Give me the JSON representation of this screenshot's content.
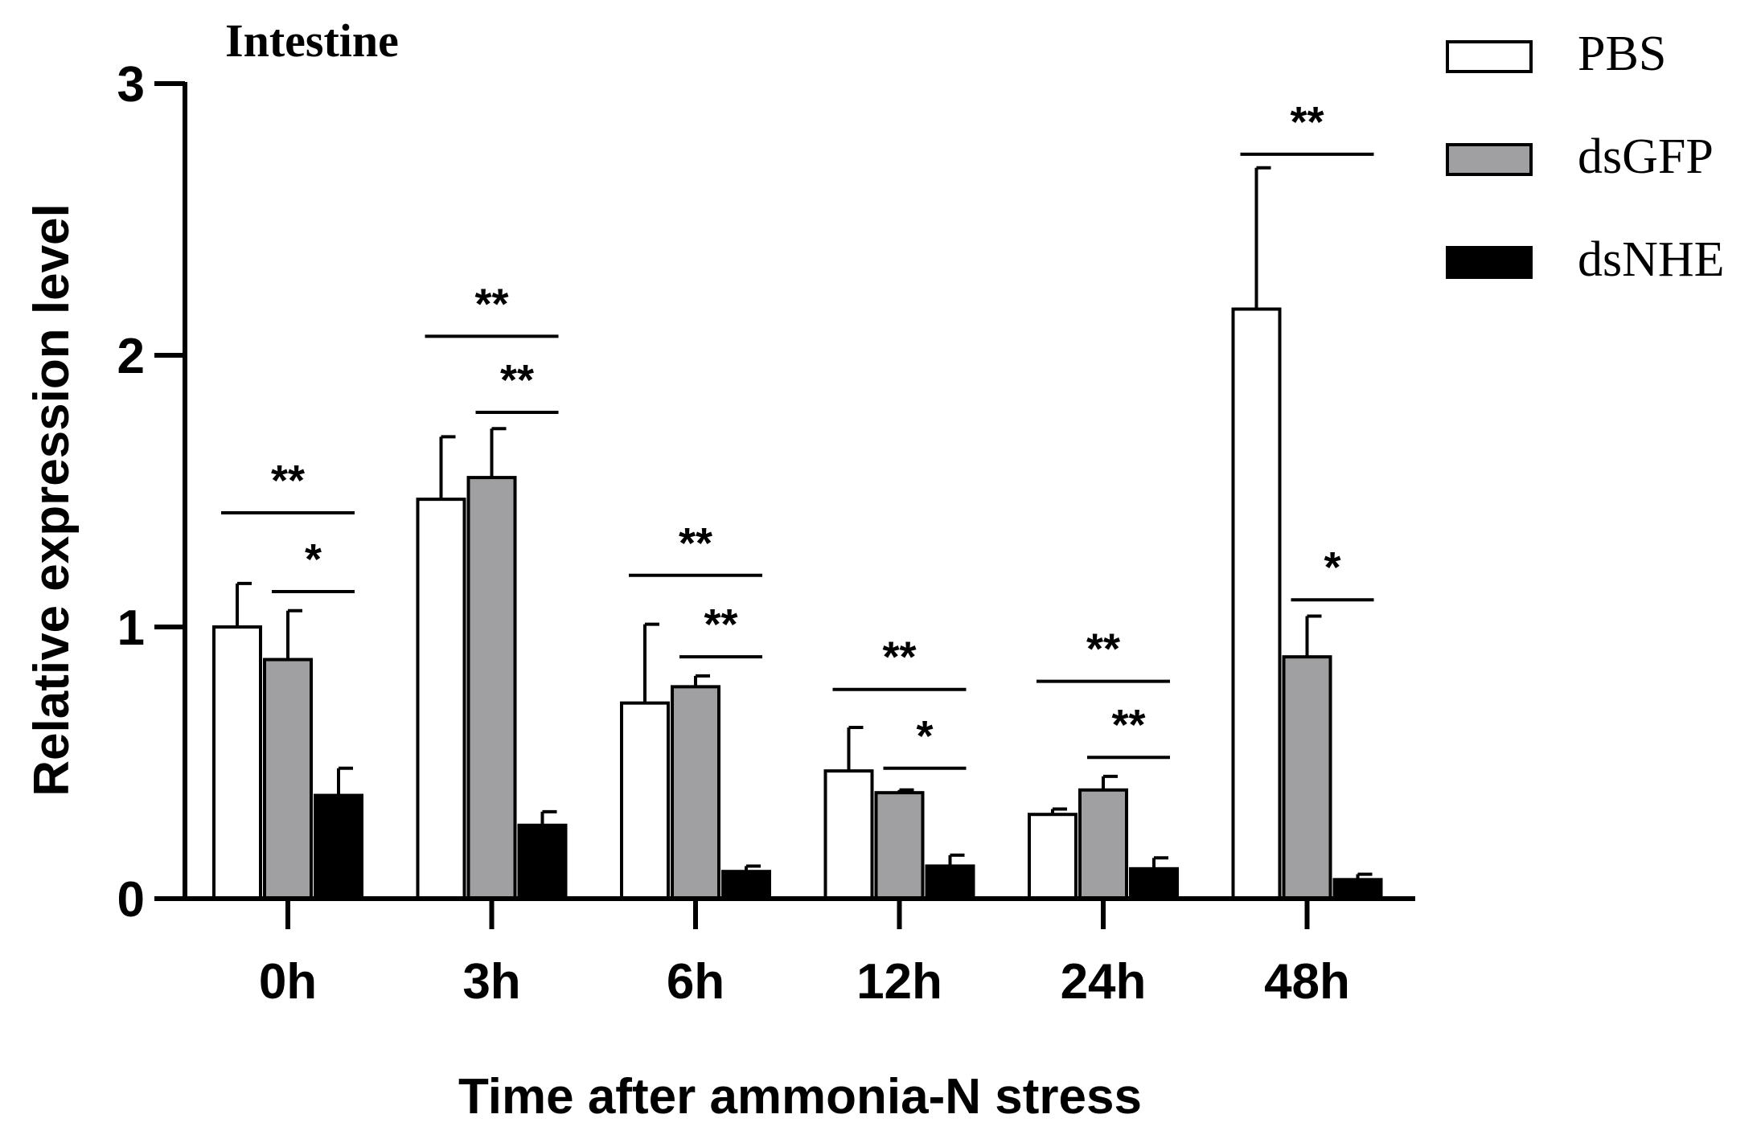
{
  "chart_data": {
    "type": "bar",
    "title": "Intestine",
    "xlabel": "Time after ammonia-N stress",
    "ylabel": "Relative expression level",
    "ylim": [
      0,
      3
    ],
    "yticks": [
      "0",
      "1",
      "2",
      "3"
    ],
    "categories": [
      "0h",
      "3h",
      "6h",
      "12h",
      "24h",
      "48h"
    ],
    "series": [
      {
        "name": "PBS",
        "color": "#ffffff",
        "values": [
          1.0,
          1.47,
          0.72,
          0.47,
          0.31,
          2.17
        ],
        "errors": [
          0.16,
          0.23,
          0.29,
          0.16,
          0.02,
          0.52
        ]
      },
      {
        "name": "dsGFP",
        "color": "#a0a0a2",
        "values": [
          0.88,
          1.55,
          0.78,
          0.39,
          0.4,
          0.89
        ],
        "errors": [
          0.18,
          0.18,
          0.04,
          0.01,
          0.05,
          0.15
        ]
      },
      {
        "name": "dsNHE",
        "color": "#000000",
        "values": [
          0.38,
          0.27,
          0.1,
          0.12,
          0.11,
          0.07
        ],
        "errors": [
          0.1,
          0.05,
          0.02,
          0.04,
          0.04,
          0.02
        ]
      }
    ],
    "legend_position": "top-right",
    "significance": [
      {
        "category": 0,
        "from_series": 0,
        "to_series": 2,
        "label": "**",
        "y": 1.42
      },
      {
        "category": 0,
        "from_series": 1,
        "to_series": 2,
        "label": "*",
        "y": 1.13
      },
      {
        "category": 1,
        "from_series": 0,
        "to_series": 2,
        "label": "**",
        "y": 2.07
      },
      {
        "category": 1,
        "from_series": 1,
        "to_series": 2,
        "label": "**",
        "y": 1.79
      },
      {
        "category": 2,
        "from_series": 0,
        "to_series": 2,
        "label": "**",
        "y": 1.19
      },
      {
        "category": 2,
        "from_series": 1,
        "to_series": 2,
        "label": "**",
        "y": 0.89
      },
      {
        "category": 3,
        "from_series": 0,
        "to_series": 2,
        "label": "**",
        "y": 0.77
      },
      {
        "category": 3,
        "from_series": 1,
        "to_series": 2,
        "label": "*",
        "y": 0.48
      },
      {
        "category": 4,
        "from_series": 0,
        "to_series": 2,
        "label": "**",
        "y": 0.8
      },
      {
        "category": 4,
        "from_series": 1,
        "to_series": 2,
        "label": "**",
        "y": 0.52
      },
      {
        "category": 5,
        "from_series": 0,
        "to_series": 2,
        "label": "**",
        "y": 2.74
      },
      {
        "category": 5,
        "from_series": 1,
        "to_series": 2,
        "label": "*",
        "y": 1.1
      }
    ]
  }
}
